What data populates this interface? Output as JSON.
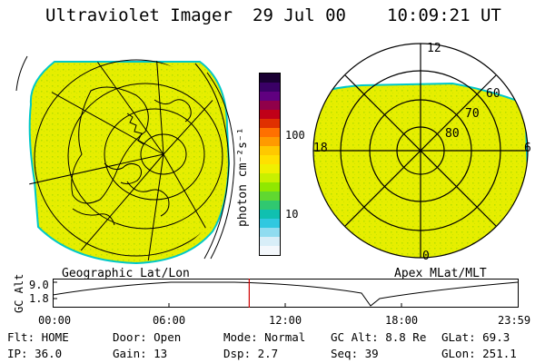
{
  "header": {
    "title": "Ultraviolet Imager",
    "date": "29 Jul 00",
    "time": "10:09:21 UT"
  },
  "colors": {
    "auroral_fill": "#e8f000",
    "auroral_speckle": "#b8e000",
    "limb_edge": "#00c8c8",
    "grid_line": "#000000",
    "time_marker": "#d00000"
  },
  "colorbar": {
    "unit_label": "photon cm⁻²s⁻¹",
    "tick_labels": [
      "100",
      "10"
    ],
    "colors_top_to_bottom": [
      "#1a0033",
      "#3a0066",
      "#600080",
      "#90004a",
      "#c00018",
      "#e03000",
      "#ff7000",
      "#ff9a00",
      "#ffc800",
      "#ffe000",
      "#f0f000",
      "#c8f000",
      "#90e800",
      "#60d830",
      "#30c870",
      "#10c0b0",
      "#30c8e0",
      "#90dcf0",
      "#d8eef8",
      "#f4f8fc"
    ]
  },
  "left_panel": {
    "caption": "Geographic Lat/Lon"
  },
  "right_panel": {
    "caption": "Apex MLat/MLT",
    "mlt_labels": {
      "top": "12",
      "left": "18",
      "right": "6",
      "bottom": "0"
    },
    "mlat_labels": [
      "60",
      "70",
      "80"
    ]
  },
  "altitude_plot": {
    "ylabel": "GC Alt",
    "ytick_labels": [
      "9.0",
      "1.8"
    ],
    "xtick_labels": [
      "00:00",
      "06:00",
      "12:00",
      "18:00",
      "23:59"
    ],
    "marker_time_fraction": 0.4226
  },
  "info": {
    "flt": "Flt: HOME",
    "ip": "IP: 36.0",
    "door": "Door: Open",
    "gain": "Gain: 13",
    "mode": "Mode: Normal",
    "dsp": "Dsp:    2.7",
    "gc_alt": "GC Alt: 8.8 Re",
    "seq": "Seq: 39",
    "glat": "GLat:  69.3",
    "glon": "GLon: 251.1"
  }
}
